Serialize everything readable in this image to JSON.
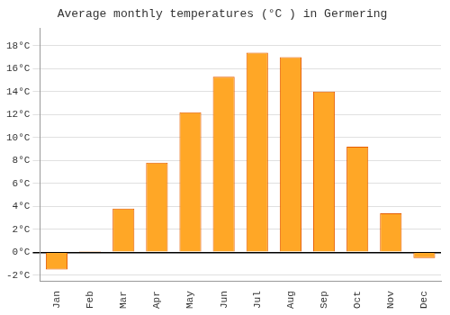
{
  "chart_data": {
    "type": "bar",
    "title": "Average monthly temperatures (°C ) in Germering",
    "categories": [
      "Jan",
      "Feb",
      "Mar",
      "Apr",
      "May",
      "Jun",
      "Jul",
      "Aug",
      "Sep",
      "Oct",
      "Nov",
      "Dec"
    ],
    "values": [
      -1.5,
      0.1,
      3.8,
      7.8,
      12.2,
      15.3,
      17.4,
      17.0,
      14.0,
      9.2,
      3.4,
      -0.5
    ],
    "color": "#FFA726",
    "ylim": [
      -2.5,
      19.5
    ],
    "yticks": [
      {
        "value": -2,
        "label": "-2°C"
      },
      {
        "value": 0,
        "label": "0°C"
      },
      {
        "value": 2,
        "label": "2°C"
      },
      {
        "value": 4,
        "label": "4°C"
      },
      {
        "value": 6,
        "label": "6°C"
      },
      {
        "value": 8,
        "label": "8°C"
      },
      {
        "value": 10,
        "label": "10°C"
      },
      {
        "value": 12,
        "label": "12°C"
      },
      {
        "value": 14,
        "label": "14°C"
      },
      {
        "value": 16,
        "label": "16°C"
      },
      {
        "value": 18,
        "label": "18°C"
      }
    ],
    "grid": true
  }
}
